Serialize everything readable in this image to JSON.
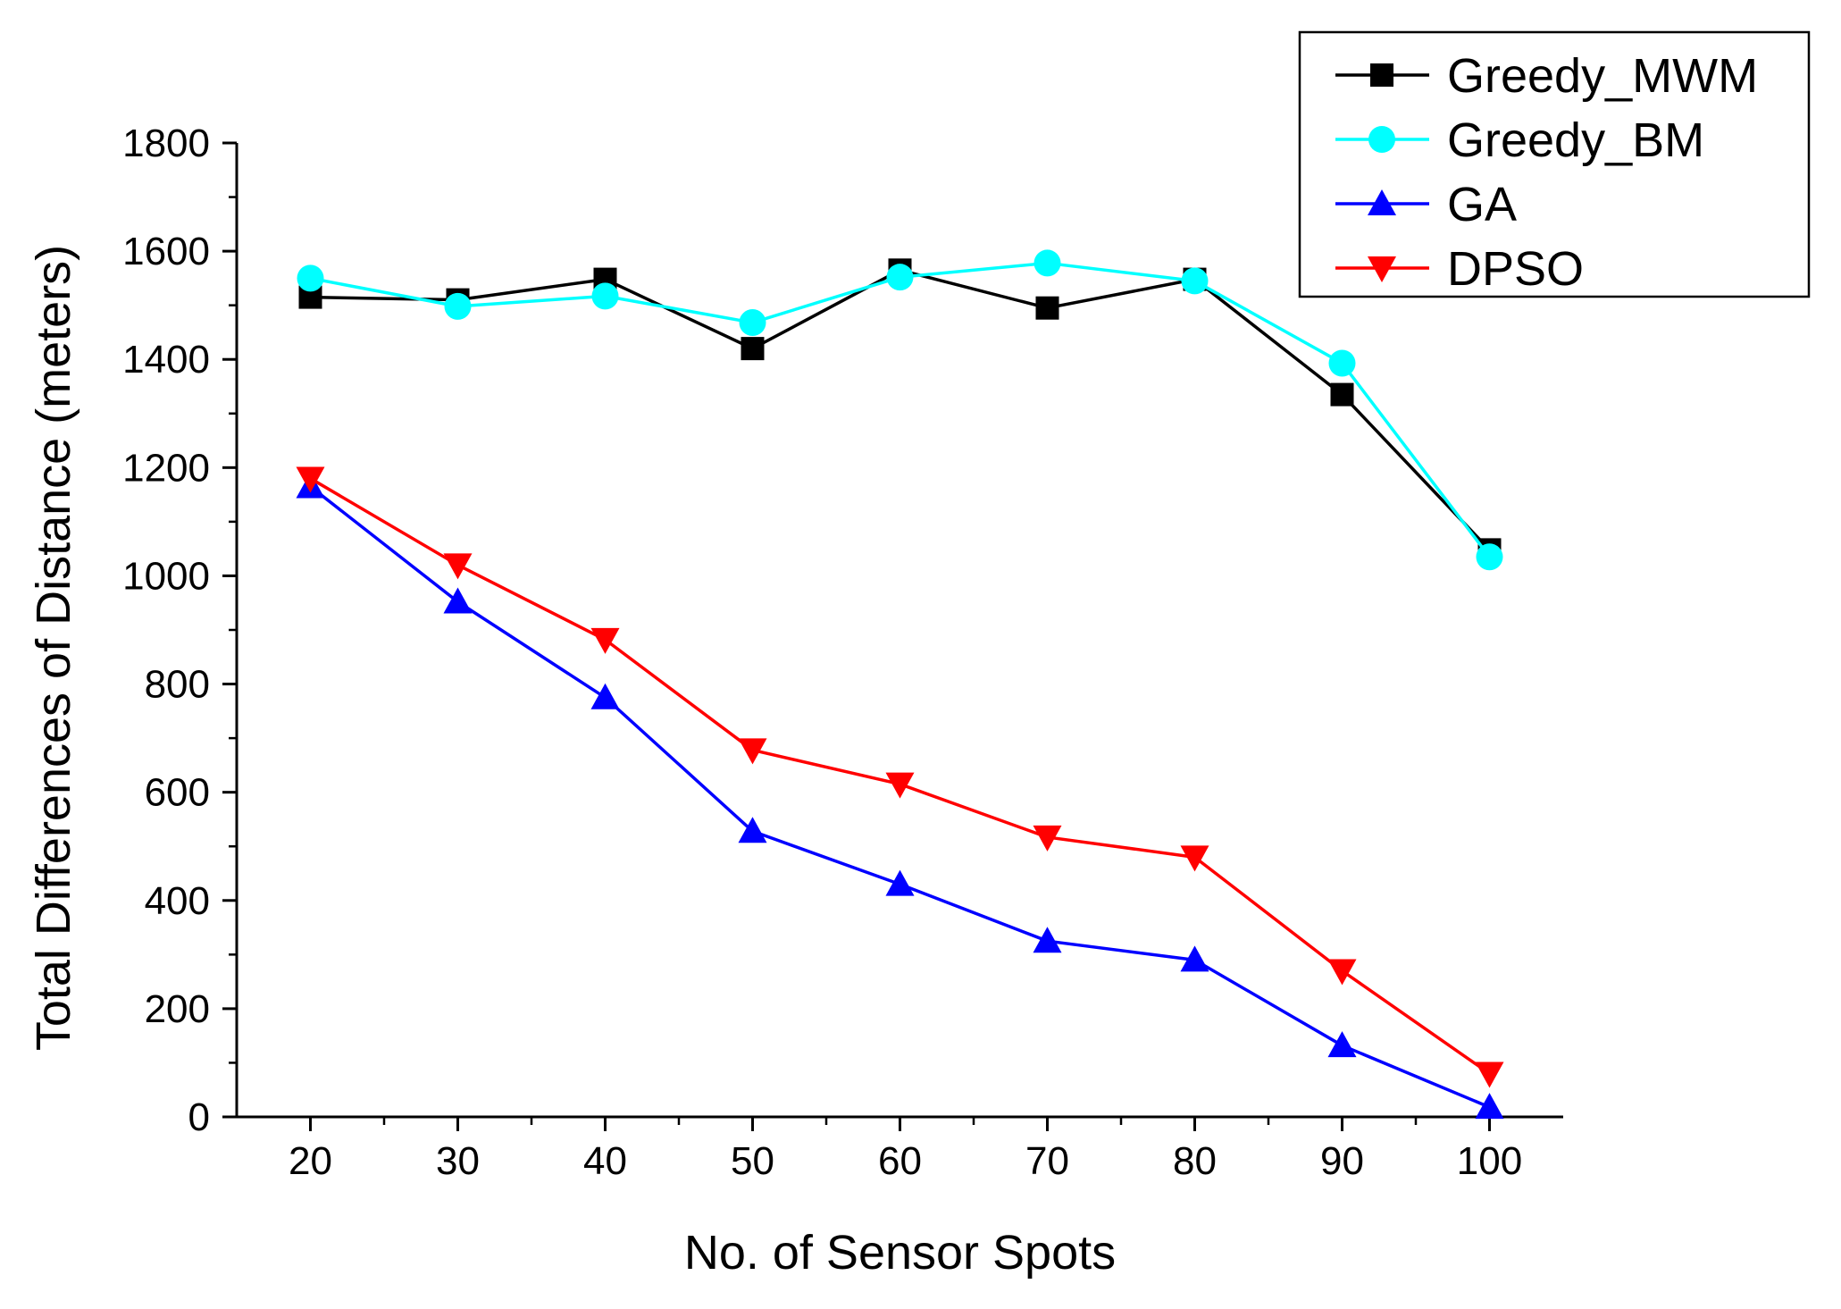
{
  "chart_data": {
    "type": "line",
    "xlabel": "No. of Sensor Spots",
    "ylabel": "Total Differences of Distance (meters)",
    "x": [
      20,
      30,
      40,
      50,
      60,
      70,
      80,
      90,
      100
    ],
    "xlim": [
      15,
      105
    ],
    "ylim": [
      0,
      1800
    ],
    "xticks": [
      20,
      30,
      40,
      50,
      60,
      70,
      80,
      90,
      100
    ],
    "yticks": [
      0,
      200,
      400,
      600,
      800,
      1000,
      1200,
      1400,
      1600,
      1800
    ],
    "grid": false,
    "legend": "top-right",
    "series": [
      {
        "name": "Greedy_MWM",
        "color": "#000000",
        "marker": "square",
        "values": [
          1515,
          1510,
          1548,
          1420,
          1565,
          1495,
          1548,
          1335,
          1048
        ]
      },
      {
        "name": "Greedy_BM",
        "color": "#00ffff",
        "marker": "circle",
        "values": [
          1550,
          1498,
          1517,
          1468,
          1552,
          1578,
          1545,
          1393,
          1035
        ]
      },
      {
        "name": "GA",
        "color": "#0000ff",
        "marker": "triangle-up",
        "values": [
          1165,
          952,
          775,
          528,
          430,
          325,
          290,
          132,
          18
        ]
      },
      {
        "name": "DPSO",
        "color": "#ff0000",
        "marker": "triangle-down",
        "values": [
          1180,
          1020,
          882,
          678,
          615,
          517,
          480,
          270,
          80
        ]
      }
    ]
  }
}
